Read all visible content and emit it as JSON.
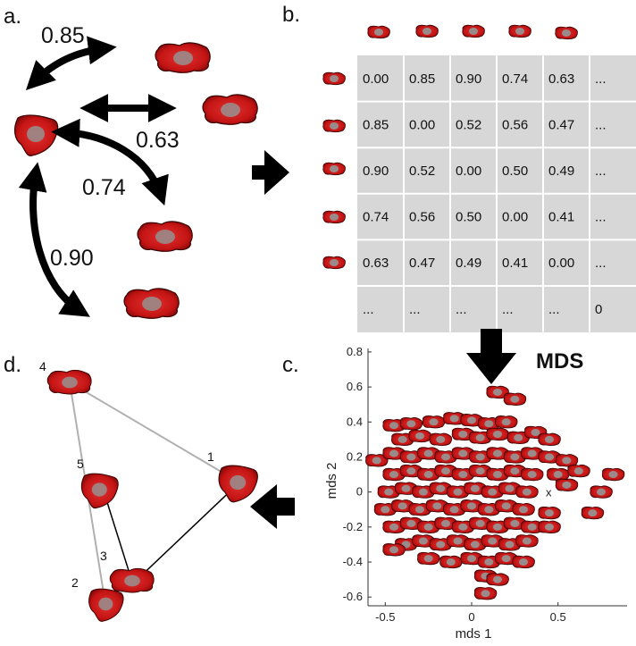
{
  "panels": {
    "a": "a.",
    "b": "b.",
    "c": "c.",
    "d": "d."
  },
  "panel_a": {
    "labels": [
      "0.85",
      "0.63",
      "0.74",
      "0.90"
    ]
  },
  "panel_b": {
    "matrix": [
      [
        "0.00",
        "0.85",
        "0.90",
        "0.74",
        "0.63",
        "..."
      ],
      [
        "0.85",
        "0.00",
        "0.52",
        "0.56",
        "0.47",
        "..."
      ],
      [
        "0.90",
        "0.52",
        "0.00",
        "0.50",
        "0.49",
        "..."
      ],
      [
        "0.74",
        "0.56",
        "0.50",
        "0.00",
        "0.41",
        "..."
      ],
      [
        "0.63",
        "0.47",
        "0.49",
        "0.41",
        "0.00",
        "..."
      ],
      [
        "...",
        "...",
        "...",
        "...",
        "...",
        "0"
      ]
    ]
  },
  "mds_label": "MDS",
  "chart_data": {
    "type": "scatter",
    "xlabel": "mds 1",
    "ylabel": "mds 2",
    "xlim": [
      -0.6,
      0.9
    ],
    "ylim": [
      -0.65,
      0.82
    ],
    "xticks": [
      "-0.5",
      "0",
      "0.5"
    ],
    "yticks": [
      "0.8",
      "0.6",
      "0.4",
      "0.2",
      "0",
      "-0.2",
      "-0.4",
      "-0.6"
    ],
    "marker_label": "x",
    "marker": {
      "x": 0.45,
      "y": 0.0
    },
    "points": [
      {
        "x": 0.15,
        "y": 0.57
      },
      {
        "x": 0.25,
        "y": 0.53
      },
      {
        "x": -0.45,
        "y": 0.38
      },
      {
        "x": -0.35,
        "y": 0.39
      },
      {
        "x": -0.22,
        "y": 0.4
      },
      {
        "x": -0.1,
        "y": 0.42
      },
      {
        "x": 0.0,
        "y": 0.41
      },
      {
        "x": 0.1,
        "y": 0.39
      },
      {
        "x": 0.2,
        "y": 0.4
      },
      {
        "x": -0.4,
        "y": 0.3
      },
      {
        "x": -0.3,
        "y": 0.32
      },
      {
        "x": -0.18,
        "y": 0.3
      },
      {
        "x": -0.05,
        "y": 0.33
      },
      {
        "x": 0.05,
        "y": 0.31
      },
      {
        "x": 0.15,
        "y": 0.33
      },
      {
        "x": 0.27,
        "y": 0.31
      },
      {
        "x": 0.37,
        "y": 0.34
      },
      {
        "x": 0.45,
        "y": 0.3
      },
      {
        "x": -0.55,
        "y": 0.18
      },
      {
        "x": -0.45,
        "y": 0.22
      },
      {
        "x": -0.35,
        "y": 0.2
      },
      {
        "x": -0.25,
        "y": 0.22
      },
      {
        "x": -0.15,
        "y": 0.2
      },
      {
        "x": -0.05,
        "y": 0.22
      },
      {
        "x": 0.05,
        "y": 0.2
      },
      {
        "x": 0.15,
        "y": 0.22
      },
      {
        "x": 0.25,
        "y": 0.2
      },
      {
        "x": 0.35,
        "y": 0.22
      },
      {
        "x": 0.45,
        "y": 0.2
      },
      {
        "x": 0.55,
        "y": 0.18
      },
      {
        "x": -0.45,
        "y": 0.1
      },
      {
        "x": -0.35,
        "y": 0.12
      },
      {
        "x": -0.25,
        "y": 0.1
      },
      {
        "x": -0.15,
        "y": 0.12
      },
      {
        "x": -0.05,
        "y": 0.1
      },
      {
        "x": 0.05,
        "y": 0.12
      },
      {
        "x": 0.15,
        "y": 0.1
      },
      {
        "x": 0.25,
        "y": 0.12
      },
      {
        "x": 0.35,
        "y": 0.1
      },
      {
        "x": 0.5,
        "y": 0.1
      },
      {
        "x": 0.62,
        "y": 0.12
      },
      {
        "x": 0.82,
        "y": 0.1
      },
      {
        "x": -0.48,
        "y": 0.0
      },
      {
        "x": -0.38,
        "y": 0.02
      },
      {
        "x": -0.28,
        "y": 0.0
      },
      {
        "x": -0.18,
        "y": 0.02
      },
      {
        "x": -0.08,
        "y": 0.0
      },
      {
        "x": 0.02,
        "y": 0.02
      },
      {
        "x": 0.12,
        "y": 0.0
      },
      {
        "x": 0.22,
        "y": 0.02
      },
      {
        "x": 0.32,
        "y": 0.0
      },
      {
        "x": 0.55,
        "y": 0.04
      },
      {
        "x": 0.75,
        "y": 0.0
      },
      {
        "x": -0.5,
        "y": -0.1
      },
      {
        "x": -0.4,
        "y": -0.08
      },
      {
        "x": -0.3,
        "y": -0.1
      },
      {
        "x": -0.2,
        "y": -0.08
      },
      {
        "x": -0.1,
        "y": -0.1
      },
      {
        "x": 0.0,
        "y": -0.08
      },
      {
        "x": 0.1,
        "y": -0.1
      },
      {
        "x": 0.2,
        "y": -0.08
      },
      {
        "x": 0.3,
        "y": -0.1
      },
      {
        "x": 0.45,
        "y": -0.12
      },
      {
        "x": 0.7,
        "y": -0.12
      },
      {
        "x": -0.45,
        "y": -0.2
      },
      {
        "x": -0.35,
        "y": -0.18
      },
      {
        "x": -0.25,
        "y": -0.2
      },
      {
        "x": -0.15,
        "y": -0.18
      },
      {
        "x": -0.05,
        "y": -0.2
      },
      {
        "x": 0.05,
        "y": -0.18
      },
      {
        "x": 0.15,
        "y": -0.2
      },
      {
        "x": 0.25,
        "y": -0.18
      },
      {
        "x": 0.35,
        "y": -0.2
      },
      {
        "x": 0.45,
        "y": -0.2
      },
      {
        "x": -0.38,
        "y": -0.3
      },
      {
        "x": -0.28,
        "y": -0.28
      },
      {
        "x": -0.18,
        "y": -0.3
      },
      {
        "x": -0.08,
        "y": -0.28
      },
      {
        "x": 0.02,
        "y": -0.3
      },
      {
        "x": 0.12,
        "y": -0.28
      },
      {
        "x": 0.22,
        "y": -0.3
      },
      {
        "x": 0.32,
        "y": -0.28
      },
      {
        "x": -0.45,
        "y": -0.33
      },
      {
        "x": -0.25,
        "y": -0.38
      },
      {
        "x": -0.12,
        "y": -0.4
      },
      {
        "x": 0.0,
        "y": -0.38
      },
      {
        "x": 0.1,
        "y": -0.4
      },
      {
        "x": 0.2,
        "y": -0.38
      },
      {
        "x": 0.3,
        "y": -0.4
      },
      {
        "x": 0.08,
        "y": -0.48
      },
      {
        "x": 0.15,
        "y": -0.5
      },
      {
        "x": 0.08,
        "y": -0.58
      }
    ]
  },
  "panel_d": {
    "nodes": [
      "1",
      "2",
      "3",
      "4",
      "5"
    ]
  }
}
